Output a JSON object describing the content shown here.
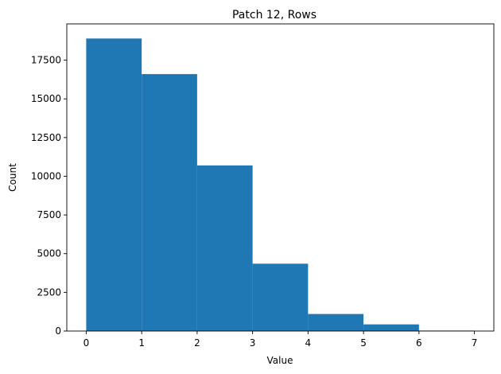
{
  "chart_data": {
    "type": "bar",
    "title": "Patch 12, Rows",
    "xlabel": "Value",
    "ylabel": "Count",
    "bin_edges": [
      0,
      1,
      2,
      3,
      4,
      5,
      6,
      7
    ],
    "values": [
      18900,
      16600,
      10700,
      4350,
      1100,
      430,
      30
    ],
    "xlim": [
      -0.35,
      7.35
    ],
    "ylim": [
      0,
      19845
    ],
    "xticks": [
      0,
      1,
      2,
      3,
      4,
      5,
      6,
      7
    ],
    "yticks": [
      0,
      2500,
      5000,
      7500,
      10000,
      12500,
      15000,
      17500
    ],
    "bar_color": "#1f77b4",
    "grid": false,
    "legend": "none"
  }
}
